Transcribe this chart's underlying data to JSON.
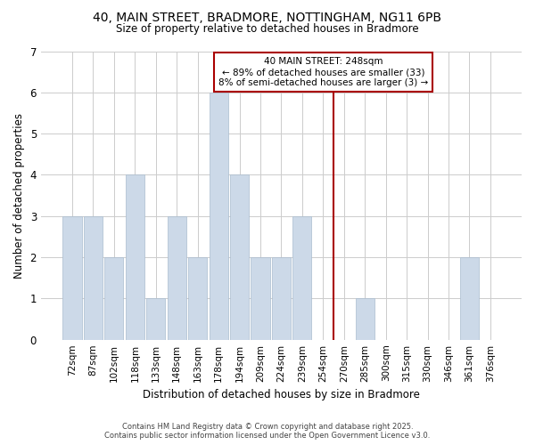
{
  "title_line1": "40, MAIN STREET, BRADMORE, NOTTINGHAM, NG11 6PB",
  "title_line2": "Size of property relative to detached houses in Bradmore",
  "xlabel": "Distribution of detached houses by size in Bradmore",
  "ylabel": "Number of detached properties",
  "categories": [
    "72sqm",
    "87sqm",
    "102sqm",
    "118sqm",
    "133sqm",
    "148sqm",
    "163sqm",
    "178sqm",
    "194sqm",
    "209sqm",
    "224sqm",
    "239sqm",
    "254sqm",
    "270sqm",
    "285sqm",
    "300sqm",
    "315sqm",
    "330sqm",
    "346sqm",
    "361sqm",
    "376sqm"
  ],
  "values": [
    3,
    3,
    2,
    4,
    1,
    3,
    2,
    6,
    4,
    2,
    2,
    3,
    0,
    0,
    1,
    0,
    0,
    0,
    0,
    2,
    0
  ],
  "bar_color": "#ccd9e8",
  "bar_edge_color": "#aabcce",
  "annotation_text": "40 MAIN STREET: 248sqm\n← 89% of detached houses are smaller (33)\n8% of semi-detached houses are larger (3) →",
  "annotation_box_color": "white",
  "annotation_box_edge_color": "#aa0000",
  "vline_color": "#aa0000",
  "vline_x_index": 12.5,
  "ylim": [
    0,
    7
  ],
  "yticks": [
    0,
    1,
    2,
    3,
    4,
    5,
    6,
    7
  ],
  "footer_line1": "Contains HM Land Registry data © Crown copyright and database right 2025.",
  "footer_line2": "Contains public sector information licensed under the Open Government Licence v3.0.",
  "bg_color": "#ffffff",
  "plot_bg_color": "#ffffff",
  "grid_color": "#cccccc"
}
